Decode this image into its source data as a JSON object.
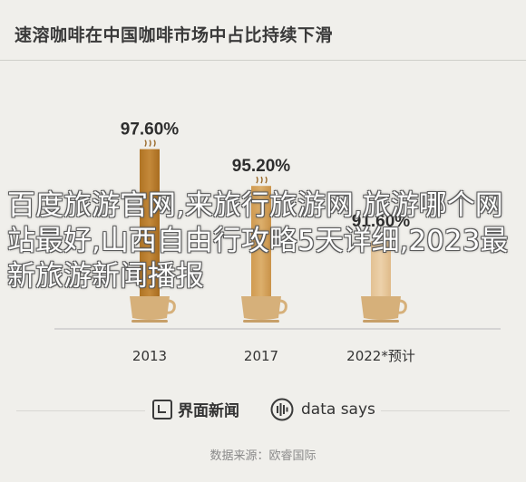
{
  "title": "速溶咖啡在中国咖啡市场中占比持续下滑",
  "overlay_text": "百度旅游官网,来旅行旅游网,旅游哪个网站最好,山西自由行攻略5天详细,2023最新旅游新闻播报",
  "brand": {
    "left_name": "界面新闻",
    "left_icon": "jiemian-logo-icon",
    "right_name": "data says",
    "right_icon": "data-says-icon"
  },
  "source": "数据来源：欧睿国际",
  "colors": {
    "bar_dark": "#b57a2c",
    "bar_mid": "#d6a55f",
    "bar_light": "#e8c99d",
    "cup": "#d4ad78",
    "background": "#f0efeb"
  },
  "chart_data": {
    "type": "bar",
    "categories": [
      "2013",
      "2017",
      "2022*预计"
    ],
    "values": [
      97.6,
      95.2,
      91.6
    ],
    "data_labels": [
      "97.60%",
      "95.20%",
      "91.60%"
    ],
    "ylim": [
      0,
      100
    ],
    "grid": false,
    "legend": "none",
    "title": "速溶咖啡在中国咖啡市场中占比持续下滑",
    "xlabel": "",
    "ylabel": ""
  }
}
